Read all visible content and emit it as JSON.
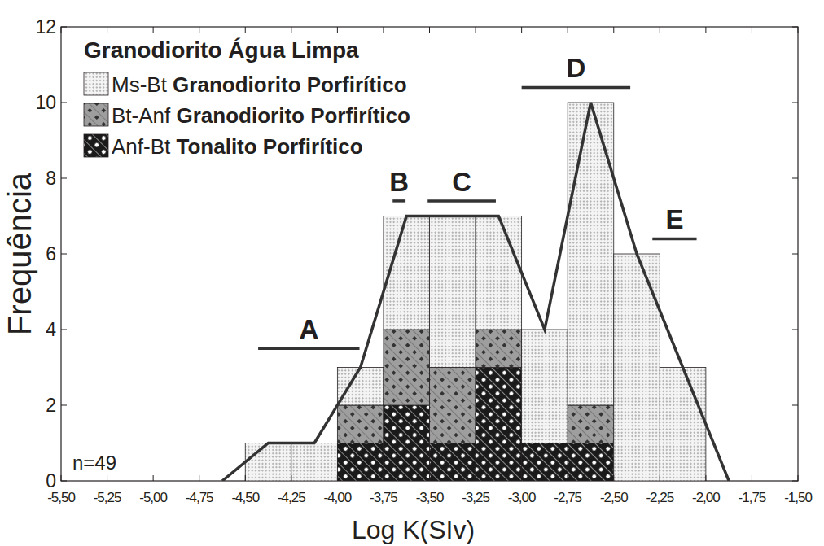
{
  "chart_data": {
    "type": "histogram",
    "title": "Granodiorito Água Limpa",
    "x_label": "Log K(SIv)",
    "y_label": "Frequência",
    "note": "n=49",
    "stacked": true,
    "grid": false,
    "legend": "top-left",
    "bins": [
      -4.5,
      -4.25,
      -4.0,
      -3.75,
      -3.5,
      -3.25,
      -3.0,
      -2.75,
      -2.5,
      -2.25,
      -2.0
    ],
    "series": [
      {
        "name": "Ms-Bt Granodiorito Porfirítico",
        "color": "#f4f4f4",
        "values": [
          1,
          1,
          1,
          3,
          4,
          3,
          3,
          8,
          6,
          3
        ]
      },
      {
        "name": "Bt-Anf Granodiorito Porfirítico",
        "color": "#9e9e9e",
        "values": [
          0,
          0,
          1,
          2,
          2,
          1,
          0,
          1,
          0,
          0
        ]
      },
      {
        "name": "Anf-Bt Tonalito Porfirítico",
        "color": "#1a1a1a",
        "values": [
          0,
          0,
          1,
          2,
          1,
          3,
          1,
          1,
          0,
          0
        ]
      },
      {
        "type": "line",
        "color": "#333333",
        "x": [
          -4.625,
          -4.375,
          -4.125,
          -3.875,
          -3.625,
          -3.125,
          -2.875,
          -2.625,
          -2.375,
          -2.125,
          -1.875
        ],
        "values": [
          0,
          1,
          1,
          3,
          7,
          7,
          4,
          10,
          6,
          3,
          0
        ]
      }
    ],
    "annotations": [
      {
        "text": "A",
        "x": [
          -4.43,
          -3.88
        ],
        "y": 3.5
      },
      {
        "text": "B",
        "x": [
          -3.7,
          -3.63
        ],
        "y": 7.4
      },
      {
        "text": "C",
        "x": [
          -3.51,
          -3.14
        ],
        "y": 7.4
      },
      {
        "text": "D",
        "x": [
          -3.0,
          -2.41
        ],
        "y": 10.4
      },
      {
        "text": "E",
        "x": [
          -2.29,
          -2.05
        ],
        "y": 6.4
      }
    ],
    "xlim": [
      -5.5,
      -1.5
    ],
    "xticks": [
      {
        "value": -5.5,
        "label": "-5,50"
      },
      {
        "value": -5.25,
        "label": "-5,25"
      },
      {
        "value": -5.0,
        "label": "-5,00"
      },
      {
        "value": -4.75,
        "label": "-4,75"
      },
      {
        "value": -4.5,
        "label": "-4,50"
      },
      {
        "value": -4.25,
        "label": "-4,25"
      },
      {
        "value": -4.0,
        "label": "-4,00"
      },
      {
        "value": -3.75,
        "label": "-3,75"
      },
      {
        "value": -3.5,
        "label": "-3,50"
      },
      {
        "value": -3.25,
        "label": "-3,25"
      },
      {
        "value": -3.0,
        "label": "-3,00"
      },
      {
        "value": -2.75,
        "label": "-2,75"
      },
      {
        "value": -2.5,
        "label": "-2,50"
      },
      {
        "value": -2.25,
        "label": "-2,25"
      },
      {
        "value": -2.0,
        "label": "-2,00"
      },
      {
        "value": -1.75,
        "label": "-1,75"
      },
      {
        "value": -1.5,
        "label": "-1,50"
      }
    ],
    "ylim": [
      0,
      12
    ],
    "yticks": [
      0,
      2,
      4,
      6,
      8,
      10,
      12
    ]
  }
}
